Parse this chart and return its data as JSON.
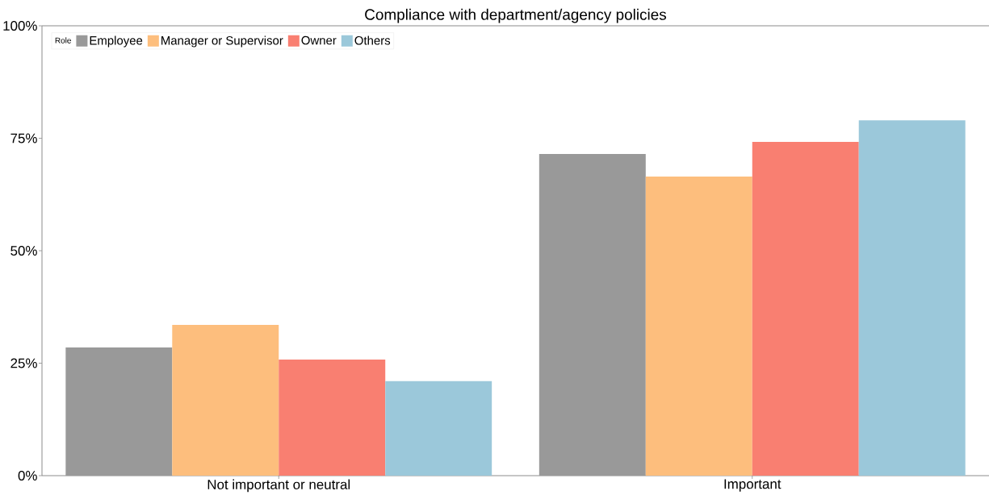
{
  "chart_data": {
    "type": "bar",
    "title": "Compliance with department/agency policies",
    "categories": [
      "Not important or neutral",
      "Important"
    ],
    "legend_title": "Role",
    "legend": "top left",
    "series": [
      {
        "name": "Employee",
        "color": "#999999",
        "values": [
          28.5,
          71.5
        ]
      },
      {
        "name": "Manager or Supervisor",
        "color": "#FDBE7D",
        "values": [
          33.5,
          66.5
        ]
      },
      {
        "name": "Owner",
        "color": "#F97F71",
        "values": [
          25.8,
          74.2
        ]
      },
      {
        "name": "Others",
        "color": "#9BC8DA",
        "values": [
          21,
          79
        ]
      }
    ],
    "ylim": [
      0,
      100
    ],
    "yticks": [
      {
        "value": 0,
        "label": "0%"
      },
      {
        "value": 25,
        "label": "25%"
      },
      {
        "value": 50,
        "label": "50%"
      },
      {
        "value": 75,
        "label": "75%"
      },
      {
        "value": 100,
        "label": "100%"
      }
    ]
  }
}
